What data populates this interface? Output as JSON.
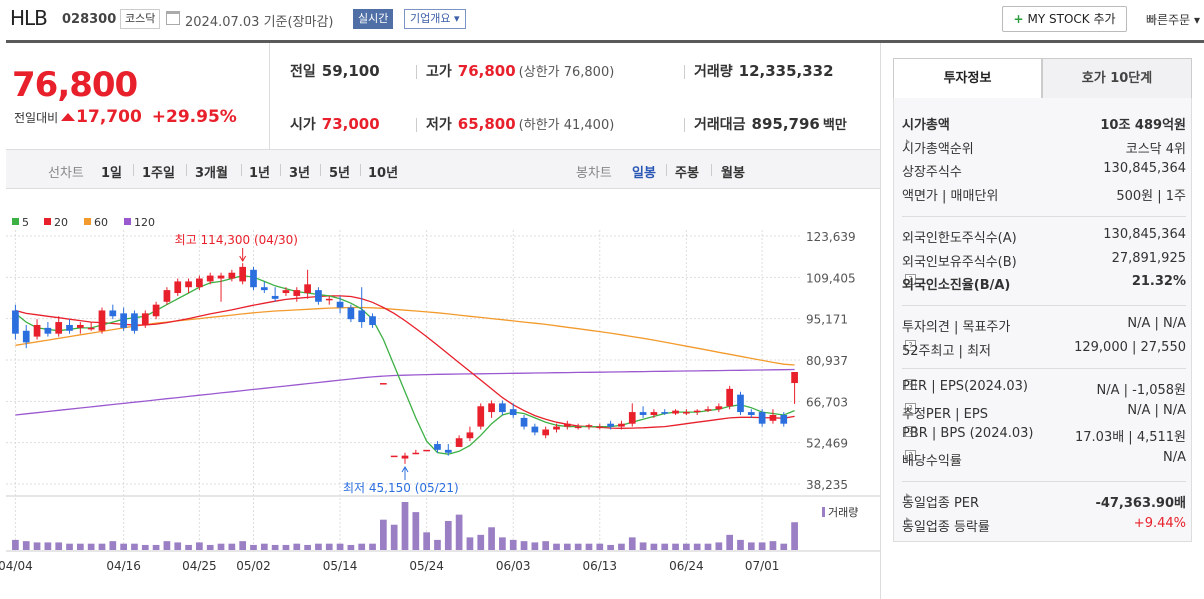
{
  "header": {
    "name": "HLB",
    "code": "028300",
    "market": "코스닥",
    "date": "2024.07.03  기준(장마감)",
    "live_label": "실시간",
    "corp_label": "기업개요",
    "mystock_label": "MY STOCK 추가",
    "quick_label": "빠른주문"
  },
  "price": {
    "current": "76,800",
    "change_label": "전일대비",
    "change": "17,700",
    "rate": "+29.95%"
  },
  "summary": {
    "prev_label": "전일",
    "prev": "59,100",
    "open_label": "시가",
    "open": "73,000",
    "high_label": "고가",
    "high": "76,800",
    "upper_limit": "(상한가 76,800)",
    "low_label": "저가",
    "low": "65,800",
    "lower_limit": "(하한가 41,400)",
    "volume_label": "거래량",
    "volume": "12,335,332",
    "amount_label": "거래대금",
    "amount": "895,796",
    "amount_unit": "백만"
  },
  "period_bar": {
    "line_label": "선차트",
    "periods": [
      "1일",
      "1주일",
      "3개월",
      "1년",
      "3년",
      "5년",
      "10년"
    ],
    "candle_label": "봉차트",
    "candles": [
      "일봉",
      "주봉",
      "월봉"
    ],
    "active_candle": "일봉"
  },
  "chart_data": {
    "type": "candlestick",
    "legend": [
      "5",
      "20",
      "60",
      "120"
    ],
    "legend_colors": [
      "#3cb043",
      "#e8202b",
      "#f39a2c",
      "#9b59d0"
    ],
    "y_ticks": [
      "123,639",
      "109,405",
      "95,171",
      "80,937",
      "66,703",
      "52,469",
      "38,235"
    ],
    "ylim": [
      38235,
      123639
    ],
    "x_ticks": [
      "04/04",
      "04/16",
      "04/25",
      "05/02",
      "05/14",
      "05/24",
      "06/03",
      "06/13",
      "06/24",
      "07/01"
    ],
    "max_annotation": "최고 114,300 (04/30)",
    "min_annotation": "최저 45,150 (05/21)",
    "volume_label": "거래량",
    "candles": [
      {
        "o": 98000,
        "h": 100000,
        "l": 88000,
        "c": 90000
      },
      {
        "o": 91000,
        "h": 93000,
        "l": 85000,
        "c": 87000
      },
      {
        "o": 89000,
        "h": 95000,
        "l": 88000,
        "c": 93000
      },
      {
        "o": 92000,
        "h": 94000,
        "l": 89000,
        "c": 90000
      },
      {
        "o": 90000,
        "h": 96000,
        "l": 89000,
        "c": 94000
      },
      {
        "o": 93000,
        "h": 95000,
        "l": 90000,
        "c": 91000
      },
      {
        "o": 92000,
        "h": 94000,
        "l": 90000,
        "c": 93000
      },
      {
        "o": 92000,
        "h": 94000,
        "l": 91000,
        "c": 92000
      },
      {
        "o": 91000,
        "h": 99000,
        "l": 90000,
        "c": 98000
      },
      {
        "o": 98000,
        "h": 100000,
        "l": 95000,
        "c": 96000
      },
      {
        "o": 97000,
        "h": 99000,
        "l": 91000,
        "c": 92000
      },
      {
        "o": 97000,
        "h": 98000,
        "l": 90000,
        "c": 91000
      },
      {
        "o": 93000,
        "h": 98000,
        "l": 92000,
        "c": 97000
      },
      {
        "o": 96000,
        "h": 101000,
        "l": 95000,
        "c": 100000
      },
      {
        "o": 101000,
        "h": 106000,
        "l": 100000,
        "c": 105000
      },
      {
        "o": 104000,
        "h": 109000,
        "l": 103000,
        "c": 108000
      },
      {
        "o": 106000,
        "h": 109000,
        "l": 104000,
        "c": 108000
      },
      {
        "o": 106000,
        "h": 110000,
        "l": 105000,
        "c": 109000
      },
      {
        "o": 108000,
        "h": 111000,
        "l": 107000,
        "c": 110000
      },
      {
        "o": 109000,
        "h": 111000,
        "l": 101000,
        "c": 110000
      },
      {
        "o": 109000,
        "h": 112000,
        "l": 108000,
        "c": 111000
      },
      {
        "o": 108000,
        "h": 114300,
        "l": 107000,
        "c": 113000
      },
      {
        "o": 112000,
        "h": 113000,
        "l": 105000,
        "c": 106000
      },
      {
        "o": 106000,
        "h": 108000,
        "l": 104000,
        "c": 105000
      },
      {
        "o": 103000,
        "h": 106000,
        "l": 101000,
        "c": 102000
      },
      {
        "o": 104000,
        "h": 106000,
        "l": 103000,
        "c": 105000
      },
      {
        "o": 103000,
        "h": 106000,
        "l": 101000,
        "c": 105000
      },
      {
        "o": 104000,
        "h": 112000,
        "l": 102000,
        "c": 107000
      },
      {
        "o": 105000,
        "h": 106000,
        "l": 100000,
        "c": 101000
      },
      {
        "o": 102000,
        "h": 103000,
        "l": 100000,
        "c": 102000
      },
      {
        "o": 101000,
        "h": 103000,
        "l": 97000,
        "c": 99000
      },
      {
        "o": 99000,
        "h": 100000,
        "l": 94000,
        "c": 95000
      },
      {
        "o": 98000,
        "h": 106000,
        "l": 92000,
        "c": 94000
      },
      {
        "o": 96000,
        "h": 97000,
        "l": 92000,
        "c": 93000
      },
      {
        "o": 73000,
        "h": 73000,
        "l": 73000,
        "c": 73000
      },
      {
        "o": 48000,
        "h": 48000,
        "l": 48000,
        "c": 48000
      },
      {
        "o": 47000,
        "h": 49000,
        "l": 45150,
        "c": 48000
      },
      {
        "o": 49000,
        "h": 50000,
        "l": 48500,
        "c": 49000
      },
      {
        "o": 50000,
        "h": 50000,
        "l": 50000,
        "c": 50000
      },
      {
        "o": 52000,
        "h": 53000,
        "l": 49000,
        "c": 50000
      },
      {
        "o": 50000,
        "h": 52000,
        "l": 48000,
        "c": 49000
      },
      {
        "o": 51000,
        "h": 55000,
        "l": 51000,
        "c": 54000
      },
      {
        "o": 54000,
        "h": 58000,
        "l": 53000,
        "c": 56000
      },
      {
        "o": 58000,
        "h": 66000,
        "l": 57000,
        "c": 65000
      },
      {
        "o": 63000,
        "h": 67000,
        "l": 61000,
        "c": 66000
      },
      {
        "o": 66000,
        "h": 67000,
        "l": 62000,
        "c": 63000
      },
      {
        "o": 64000,
        "h": 66000,
        "l": 61000,
        "c": 62000
      },
      {
        "o": 61000,
        "h": 62000,
        "l": 57000,
        "c": 58000
      },
      {
        "o": 58000,
        "h": 59000,
        "l": 55000,
        "c": 56000
      },
      {
        "o": 55000,
        "h": 58000,
        "l": 54000,
        "c": 57000
      },
      {
        "o": 57000,
        "h": 59000,
        "l": 56000,
        "c": 58000
      },
      {
        "o": 58000,
        "h": 60000,
        "l": 57000,
        "c": 59000
      },
      {
        "o": 58000,
        "h": 59000,
        "l": 57000,
        "c": 58000
      },
      {
        "o": 58000,
        "h": 59000,
        "l": 57000,
        "c": 58500
      },
      {
        "o": 58000,
        "h": 59000,
        "l": 57000,
        "c": 58000
      },
      {
        "o": 59000,
        "h": 60000,
        "l": 57000,
        "c": 58000
      },
      {
        "o": 58000,
        "h": 60000,
        "l": 57000,
        "c": 59000
      },
      {
        "o": 59000,
        "h": 66000,
        "l": 58000,
        "c": 63000
      },
      {
        "o": 63000,
        "h": 65000,
        "l": 61000,
        "c": 62000
      },
      {
        "o": 62000,
        "h": 64000,
        "l": 61000,
        "c": 63000
      },
      {
        "o": 63000,
        "h": 64000,
        "l": 62000,
        "c": 62500
      },
      {
        "o": 62500,
        "h": 64000,
        "l": 62000,
        "c": 63500
      },
      {
        "o": 63000,
        "h": 64000,
        "l": 62000,
        "c": 63000
      },
      {
        "o": 63000,
        "h": 64000,
        "l": 62000,
        "c": 63500
      },
      {
        "o": 63500,
        "h": 65000,
        "l": 63000,
        "c": 64000
      },
      {
        "o": 64000,
        "h": 66000,
        "l": 63000,
        "c": 65000
      },
      {
        "o": 65000,
        "h": 72000,
        "l": 64000,
        "c": 71000
      },
      {
        "o": 69000,
        "h": 70000,
        "l": 62000,
        "c": 63000
      },
      {
        "o": 63000,
        "h": 64000,
        "l": 61000,
        "c": 62000
      },
      {
        "o": 63000,
        "h": 64000,
        "l": 58000,
        "c": 59000
      },
      {
        "o": 60000,
        "h": 64000,
        "l": 59000,
        "c": 62000
      },
      {
        "o": 62000,
        "h": 63000,
        "l": 58000,
        "c": 59000
      },
      {
        "o": 73000,
        "h": 76800,
        "l": 65800,
        "c": 76800
      }
    ],
    "volumes": [
      8,
      7,
      6,
      6,
      6,
      5,
      5,
      5,
      5,
      7,
      5,
      5,
      4,
      4,
      7,
      6,
      4,
      6,
      4,
      5,
      5,
      7,
      4,
      5,
      4,
      4,
      5,
      4,
      5,
      5,
      5,
      4,
      5,
      5,
      24,
      20,
      38,
      30,
      14,
      8,
      23,
      28,
      10,
      12,
      18,
      10,
      8,
      7,
      6,
      7,
      5,
      5,
      5,
      5,
      5,
      4,
      5,
      10,
      6,
      5,
      5,
      5,
      5,
      5,
      5,
      6,
      12,
      8,
      6,
      6,
      7,
      5,
      22
    ],
    "ma5": [
      97000,
      94000,
      92000,
      91500,
      91000,
      91500,
      92000,
      92000,
      93000,
      94000,
      95000,
      95500,
      96000,
      98000,
      100000,
      102000,
      104000,
      106000,
      107500,
      108000,
      109000,
      110000,
      109500,
      108000,
      106500,
      105500,
      104500,
      104000,
      103500,
      103000,
      102000,
      100500,
      98500,
      95000,
      88000,
      79000,
      70000,
      61000,
      53000,
      49000,
      48500,
      49500,
      51500,
      55000,
      59000,
      62000,
      63000,
      62500,
      61000,
      59500,
      58500,
      58000,
      58000,
      58000,
      58000,
      58000,
      58500,
      59500,
      60500,
      61500,
      62500,
      63000,
      63000,
      63000,
      63500,
      64000,
      65000,
      65500,
      64500,
      63000,
      62500,
      62000,
      63500
    ],
    "ma20": [
      98000,
      97000,
      96500,
      96000,
      95500,
      95000,
      94500,
      94000,
      93800,
      93500,
      93200,
      93000,
      93000,
      93300,
      93800,
      94500,
      95200,
      96000,
      96800,
      97500,
      98200,
      99000,
      99800,
      100500,
      101200,
      101800,
      102200,
      102500,
      102800,
      103000,
      103000,
      102800,
      102000,
      100800,
      99000,
      97000,
      94500,
      91800,
      89000,
      86000,
      83000,
      80000,
      77000,
      74000,
      71000,
      68000,
      65500,
      63500,
      61800,
      60500,
      59500,
      58800,
      58200,
      58000,
      57800,
      57500,
      57400,
      57500,
      57600,
      57800,
      58000,
      58500,
      59000,
      59500,
      60000,
      60500,
      61000,
      61200,
      61200,
      61100,
      61000,
      60900,
      61500
    ],
    "ma60": [
      86000,
      86600,
      87200,
      87800,
      88400,
      89000,
      89600,
      90200,
      90800,
      91400,
      92000,
      92600,
      93100,
      93600,
      94000,
      94400,
      94800,
      95200,
      95600,
      96000,
      96400,
      96800,
      97200,
      97500,
      97800,
      98000,
      98200,
      98400,
      98600,
      98800,
      98900,
      99000,
      99000,
      98900,
      98700,
      98400,
      98100,
      97800,
      97500,
      97200,
      96800,
      96400,
      96000,
      95600,
      95200,
      94800,
      94400,
      94000,
      93600,
      93200,
      92700,
      92200,
      91700,
      91200,
      90700,
      90200,
      89600,
      89000,
      88400,
      87800,
      87100,
      86400,
      85700,
      85000,
      84300,
      83600,
      82900,
      82200,
      81500,
      80800,
      80100,
      79500,
      79200
    ],
    "ma120": [
      62000,
      62400,
      62800,
      63200,
      63600,
      64000,
      64400,
      64800,
      65200,
      65600,
      66000,
      66400,
      66800,
      67200,
      67600,
      68000,
      68400,
      68800,
      69200,
      69600,
      70000,
      70400,
      70800,
      71200,
      71600,
      72000,
      72400,
      72800,
      73200,
      73600,
      74000,
      74400,
      74800,
      75100,
      75400,
      75600,
      75700,
      75800,
      75900,
      76000,
      76050,
      76100,
      76150,
      76200,
      76250,
      76300,
      76350,
      76400,
      76450,
      76500,
      76550,
      76600,
      76650,
      76700,
      76750,
      76800,
      76850,
      76900,
      76950,
      77000,
      77050,
      77100,
      77150,
      77200,
      77250,
      77300,
      77350,
      77400,
      77450,
      77500,
      77550,
      77600,
      77650
    ]
  },
  "tabs": {
    "invest": "투자정보",
    "hoga": "호가 10단계"
  },
  "info": {
    "g1": [
      {
        "k": "시가총액",
        "v": "10조 489억원",
        "kb": true,
        "vb": true
      },
      {
        "k": "시가총액순위",
        "v": "코스닥 4위",
        "arrow": true
      },
      {
        "k": "상장주식수",
        "v": "130,845,364"
      },
      {
        "k": "액면가 | 매매단위",
        "v": "500원 | 1주"
      }
    ],
    "g2": [
      {
        "k": "외국인한도주식수(A)",
        "v": "130,845,364"
      },
      {
        "k": "외국인보유주식수(B)",
        "v": "27,891,925"
      },
      {
        "k": "외국인소진율(B/A)",
        "v": "21.32%",
        "kb": true,
        "vb": true,
        "hint": true
      }
    ],
    "g3": [
      {
        "k": "투자의견 | 목표주가",
        "v": "N/A | N/A"
      },
      {
        "k": "52주최고 | 최저",
        "v": "129,000 | 27,550",
        "hint": true
      }
    ],
    "g4": [
      {
        "k": "PER | EPS(2024.03)",
        "v": "N/A | -1,058원",
        "hint": true
      },
      {
        "k": "추정PER | EPS",
        "v": "N/A | N/A",
        "hint": true
      },
      {
        "k": "PBR | BPS (2024.03)",
        "v": "17.03배 | 4,511원",
        "hint": true
      },
      {
        "k": "배당수익률",
        "v": "N/A",
        "hint": true
      }
    ],
    "g5": [
      {
        "k": "동일업종 PER",
        "v": "-47,363.90배",
        "vb": true,
        "arrow": true
      },
      {
        "k": "동일업종 등락률",
        "v": "+9.44%",
        "red": true,
        "arrow": true
      }
    ]
  }
}
